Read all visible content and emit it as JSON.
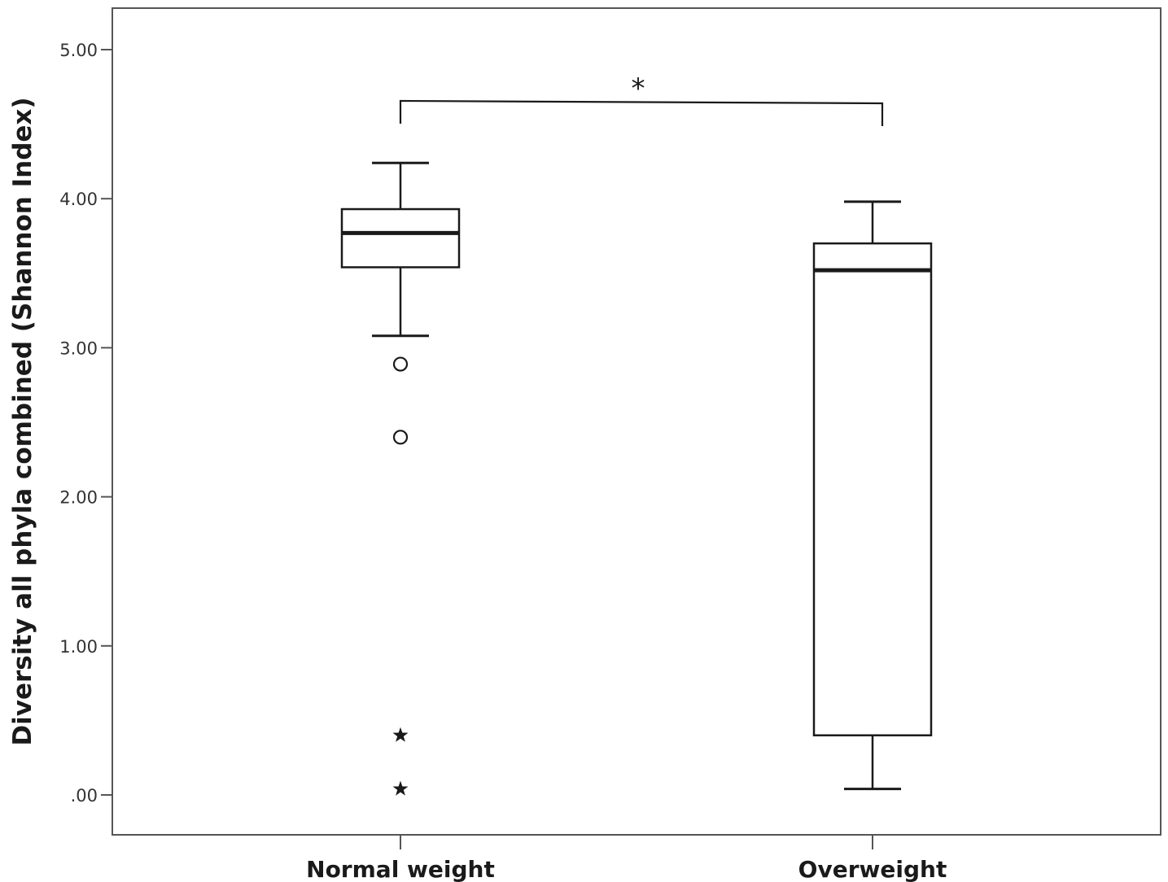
{
  "chart_data": {
    "type": "boxplot",
    "ylabel": "Diversity all phyla combined (Shannon Index)",
    "xlabel": "",
    "ylim": [
      0,
      5
    ],
    "yticks": [
      {
        "value": 0,
        "label": ".00"
      },
      {
        "value": 1,
        "label": "1.00"
      },
      {
        "value": 2,
        "label": "2.00"
      },
      {
        "value": 3,
        "label": "3.00"
      },
      {
        "value": 4,
        "label": "4.00"
      },
      {
        "value": 5,
        "label": "5.00"
      }
    ],
    "categories": [
      "Normal weight",
      "Overweight"
    ],
    "boxes": [
      {
        "category": "Normal weight",
        "whisker_low": 3.08,
        "q1": 3.54,
        "median": 3.77,
        "q3": 3.93,
        "whisker_high": 4.24,
        "outliers": [
          2.89,
          2.4
        ],
        "extremes": [
          0.4,
          0.04
        ]
      },
      {
        "category": "Overweight",
        "whisker_low": 0.04,
        "q1": 0.4,
        "median": 3.52,
        "q3": 3.7,
        "whisker_high": 3.98,
        "outliers": [],
        "extremes": []
      }
    ],
    "significance": {
      "between": [
        "Normal weight",
        "Overweight"
      ],
      "label": "*"
    },
    "grid": false,
    "colors": {
      "box_fill": "#ffffff",
      "stroke": "#1a1a1a",
      "frame": "#555555"
    }
  }
}
